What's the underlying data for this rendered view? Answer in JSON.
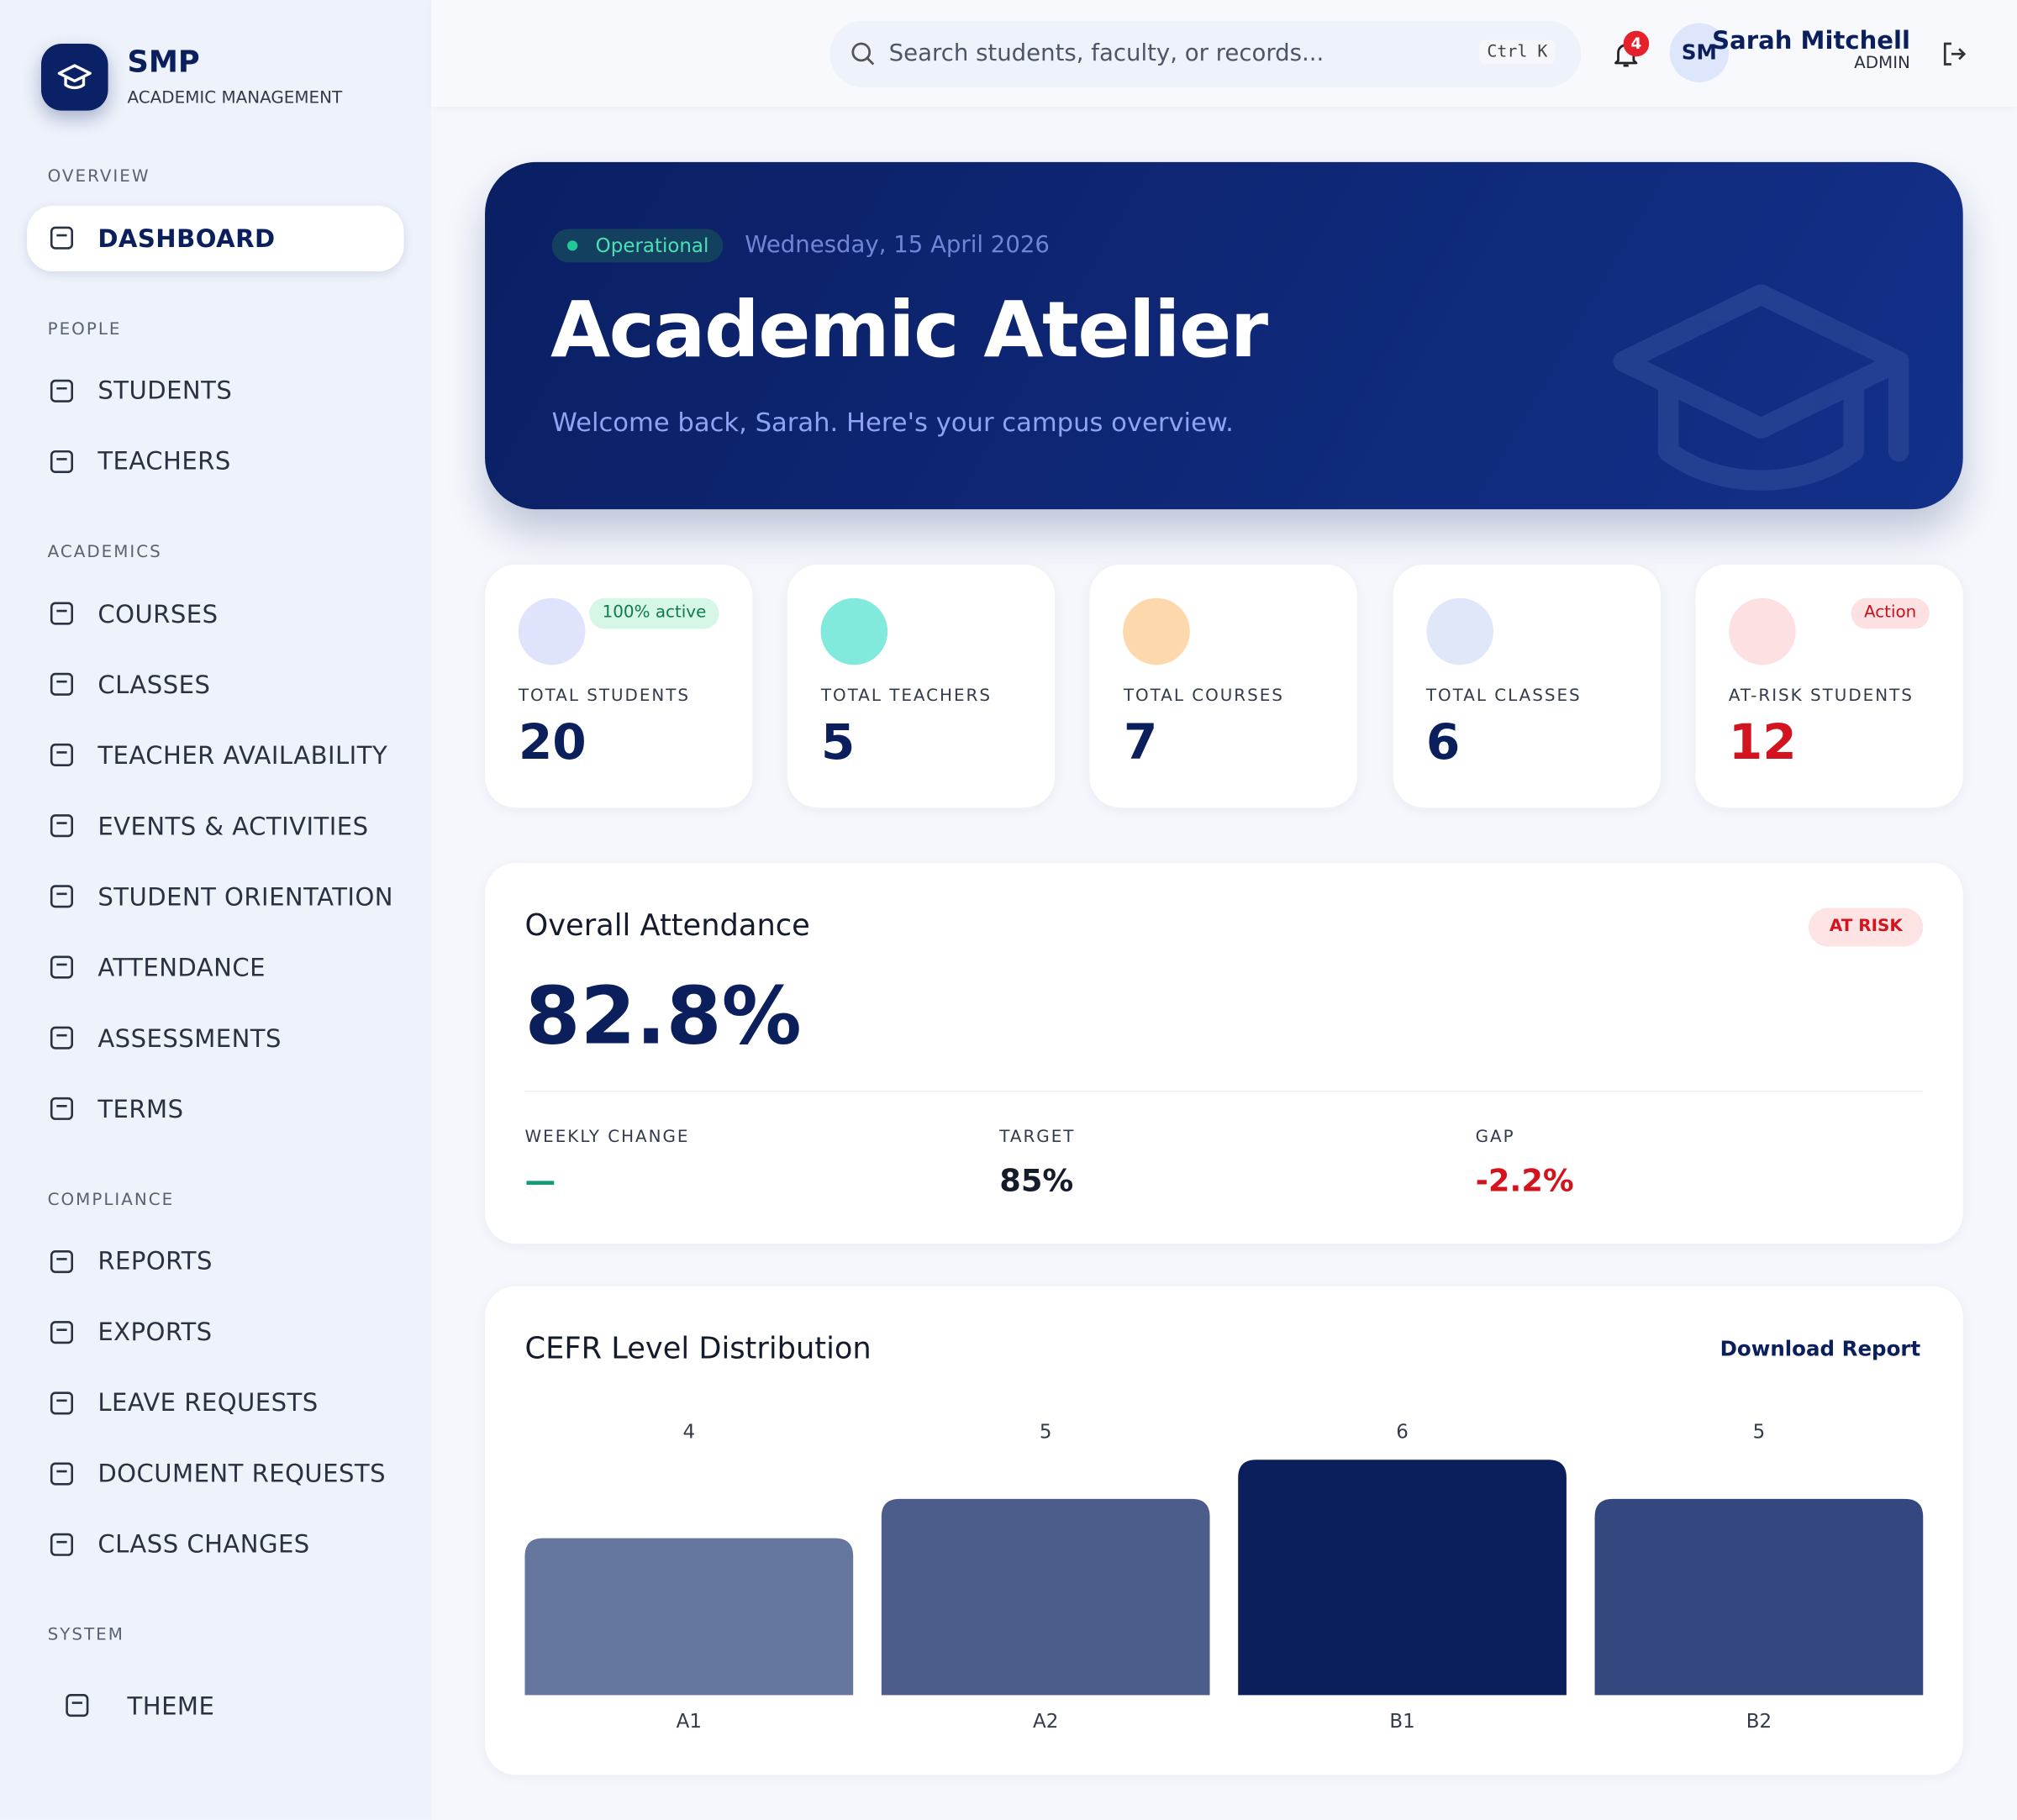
{
  "brand": {
    "name": "SMP",
    "subtitle": "ACADEMIC MANAGEMENT"
  },
  "sidebar": {
    "sections": [
      {
        "title": "OVERVIEW",
        "items": [
          "DASHBOARD"
        ]
      },
      {
        "title": "PEOPLE",
        "items": [
          "STUDENTS",
          "TEACHERS"
        ]
      },
      {
        "title": "ACADEMICS",
        "items": [
          "COURSES",
          "CLASSES",
          "TEACHER AVAILABILITY",
          "EVENTS & ACTIVITIES",
          "STUDENT ORIENTATION",
          "ATTENDANCE",
          "ASSESSMENTS",
          "TERMS"
        ]
      },
      {
        "title": "COMPLIANCE",
        "items": [
          "REPORTS",
          "EXPORTS",
          "LEAVE REQUESTS",
          "DOCUMENT REQUESTS",
          "CLASS CHANGES"
        ]
      },
      {
        "title": "SYSTEM",
        "items": [
          "THEME"
        ]
      }
    ]
  },
  "header": {
    "search_placeholder": "Search students, faculty, or records...",
    "shortcut": "Ctrl K",
    "notifications": 4,
    "avatar": "SM",
    "user_name": "Sarah Mitchell",
    "user_role": "ADMIN"
  },
  "hero": {
    "status": "Operational",
    "date": "Wednesday, 15 April 2026",
    "title": "Academic Atelier",
    "subtitle": "Welcome back, Sarah. Here's your campus overview."
  },
  "stats": [
    {
      "label": "TOTAL STUDENTS",
      "value": 20,
      "badge": "100% active"
    },
    {
      "label": "TOTAL TEACHERS",
      "value": 5
    },
    {
      "label": "TOTAL COURSES",
      "value": 7
    },
    {
      "label": "TOTAL CLASSES",
      "value": 6
    },
    {
      "label": "AT-RISK STUDENTS",
      "value": 12,
      "badge": "Action"
    }
  ],
  "attendance": {
    "title": "Overall Attendance",
    "badge": "AT RISK",
    "value": "82.8%",
    "metrics": [
      {
        "label": "WEEKLY CHANGE",
        "value": "—"
      },
      {
        "label": "TARGET",
        "value": "85%"
      },
      {
        "label": "GAP",
        "value": "-2.2%"
      }
    ]
  },
  "chart_data": {
    "type": "bar",
    "title": "CEFR Level Distribution",
    "action": "Download Report",
    "categories": [
      "A1",
      "A2",
      "B1",
      "B2"
    ],
    "values": [
      4,
      5,
      6,
      5
    ],
    "colors": [
      "#66779f",
      "#4c5d8c",
      "#0b1f5c",
      "#34477f"
    ]
  }
}
